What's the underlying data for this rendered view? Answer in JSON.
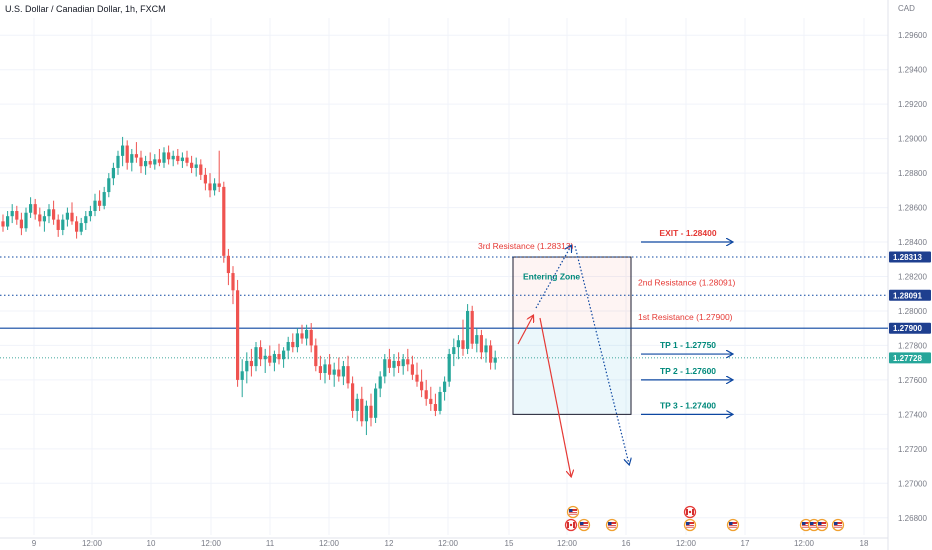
{
  "chart_data": {
    "type": "candlestick",
    "title": "U.S. Dollar / Canadian Dollar, 1h, FXCM",
    "currency": "CAD",
    "ylim": [
      1.267,
      1.297
    ],
    "y_ticks": [
      "1.29600",
      "1.29400",
      "1.29200",
      "1.29000",
      "1.28800",
      "1.28600",
      "1.28400",
      "1.28200",
      "1.28000",
      "1.27800",
      "1.27600",
      "1.27400",
      "1.27200",
      "1.27000",
      "1.26800"
    ],
    "x_ticks": [
      "9",
      "12:00",
      "10",
      "12:00",
      "11",
      "12:00",
      "12",
      "12:00",
      "15",
      "12:00",
      "16",
      "12:00",
      "17",
      "12:00",
      "18"
    ],
    "colors": {
      "up": "#26a69a",
      "down": "#ef5350",
      "blue": "#0d47a1",
      "teal": "#00897b",
      "red": "#e53935",
      "tag": "#1e3f8f"
    },
    "price_tags": [
      {
        "label": "1.28313",
        "value": 1.28313
      },
      {
        "label": "1.28091",
        "value": 1.28091
      },
      {
        "label": "1.27900",
        "value": 1.279
      },
      {
        "label": "1.27728",
        "value": 1.27728,
        "style": "current"
      }
    ],
    "levels": [
      {
        "label": "3rd Resistance (1.28313)",
        "value": 1.28313
      },
      {
        "label": "2nd Resistance (1.28091)",
        "value": 1.28091
      },
      {
        "label": "1st Resistance (1.27900)",
        "value": 1.279
      }
    ],
    "targets": [
      {
        "label": "EXIT - 1.28400",
        "value": 1.284,
        "color": "red"
      },
      {
        "label": "TP 1 - 1.27750",
        "value": 1.2775,
        "color": "teal"
      },
      {
        "label": "TP 2 - 1.27600",
        "value": 1.276,
        "color": "teal"
      },
      {
        "label": "TP 3 - 1.27400",
        "value": 1.274,
        "color": "teal"
      }
    ],
    "zone_label": "Entering Zone",
    "zone": {
      "top": 1.28313,
      "mid": 1.279,
      "bottom": 1.274
    },
    "ohlc": [
      [
        1.2852,
        1.2856,
        1.2846,
        1.2849
      ],
      [
        1.2849,
        1.2858,
        1.2847,
        1.2855
      ],
      [
        1.2855,
        1.2862,
        1.2851,
        1.2858
      ],
      [
        1.2858,
        1.2861,
        1.285,
        1.2853
      ],
      [
        1.2853,
        1.2857,
        1.2844,
        1.2848
      ],
      [
        1.2848,
        1.286,
        1.2846,
        1.2857
      ],
      [
        1.2857,
        1.2866,
        1.2854,
        1.2862
      ],
      [
        1.2862,
        1.2865,
        1.2853,
        1.2856
      ],
      [
        1.2856,
        1.286,
        1.2849,
        1.2852
      ],
      [
        1.2852,
        1.2858,
        1.2846,
        1.2855
      ],
      [
        1.2855,
        1.2862,
        1.2851,
        1.2859
      ],
      [
        1.2859,
        1.2864,
        1.285,
        1.2853
      ],
      [
        1.2853,
        1.2856,
        1.2843,
        1.2847
      ],
      [
        1.2847,
        1.2856,
        1.2844,
        1.2853
      ],
      [
        1.2853,
        1.286,
        1.2849,
        1.2857
      ],
      [
        1.2857,
        1.2863,
        1.285,
        1.2852
      ],
      [
        1.2852,
        1.2855,
        1.2842,
        1.2846
      ],
      [
        1.2846,
        1.2854,
        1.2844,
        1.2851
      ],
      [
        1.2851,
        1.2858,
        1.2847,
        1.2855
      ],
      [
        1.2855,
        1.2861,
        1.2852,
        1.2858
      ],
      [
        1.2858,
        1.2868,
        1.2855,
        1.2864
      ],
      [
        1.2864,
        1.287,
        1.2858,
        1.2861
      ],
      [
        1.2861,
        1.2872,
        1.2859,
        1.2869
      ],
      [
        1.2869,
        1.288,
        1.2866,
        1.2877
      ],
      [
        1.2877,
        1.2886,
        1.2873,
        1.2883
      ],
      [
        1.2883,
        1.2893,
        1.2879,
        1.289
      ],
      [
        1.289,
        1.2901,
        1.2884,
        1.2896
      ],
      [
        1.2896,
        1.2899,
        1.2882,
        1.2886
      ],
      [
        1.2886,
        1.2894,
        1.2881,
        1.2891
      ],
      [
        1.2891,
        1.2898,
        1.2886,
        1.2889
      ],
      [
        1.2889,
        1.2893,
        1.288,
        1.2884
      ],
      [
        1.2884,
        1.289,
        1.2879,
        1.2887
      ],
      [
        1.2887,
        1.2892,
        1.2883,
        1.2885
      ],
      [
        1.2885,
        1.2891,
        1.2882,
        1.2888
      ],
      [
        1.2888,
        1.2894,
        1.2884,
        1.2886
      ],
      [
        1.2886,
        1.2895,
        1.2883,
        1.2892
      ],
      [
        1.2892,
        1.2896,
        1.2885,
        1.2888
      ],
      [
        1.2888,
        1.2893,
        1.2884,
        1.289
      ],
      [
        1.289,
        1.2894,
        1.2885,
        1.2887
      ],
      [
        1.2887,
        1.2892,
        1.2883,
        1.2889
      ],
      [
        1.2889,
        1.2893,
        1.2884,
        1.2886
      ],
      [
        1.2886,
        1.289,
        1.288,
        1.2883
      ],
      [
        1.2883,
        1.2889,
        1.2878,
        1.2885
      ],
      [
        1.2885,
        1.2888,
        1.2876,
        1.2879
      ],
      [
        1.2879,
        1.2883,
        1.287,
        1.2874
      ],
      [
        1.2874,
        1.288,
        1.2866,
        1.287
      ],
      [
        1.287,
        1.2877,
        1.2867,
        1.2874
      ],
      [
        1.2874,
        1.2893,
        1.2869,
        1.2872
      ],
      [
        1.2872,
        1.2875,
        1.2828,
        1.2832
      ],
      [
        1.2832,
        1.2836,
        1.2815,
        1.2822
      ],
      [
        1.2822,
        1.2826,
        1.2804,
        1.2812
      ],
      [
        1.2812,
        1.2818,
        1.2756,
        1.276
      ],
      [
        1.276,
        1.2772,
        1.275,
        1.2765
      ],
      [
        1.2765,
        1.2776,
        1.2758,
        1.2771
      ],
      [
        1.2771,
        1.2778,
        1.2762,
        1.2768
      ],
      [
        1.2768,
        1.2782,
        1.2765,
        1.2779
      ],
      [
        1.2779,
        1.2783,
        1.2768,
        1.2772
      ],
      [
        1.2772,
        1.2778,
        1.2764,
        1.2774
      ],
      [
        1.2774,
        1.278,
        1.2768,
        1.277
      ],
      [
        1.277,
        1.2777,
        1.2765,
        1.2775
      ],
      [
        1.2775,
        1.2781,
        1.2769,
        1.2772
      ],
      [
        1.2772,
        1.2779,
        1.2767,
        1.2777
      ],
      [
        1.2777,
        1.2785,
        1.2772,
        1.2782
      ],
      [
        1.2782,
        1.2787,
        1.2776,
        1.2779
      ],
      [
        1.2779,
        1.279,
        1.2776,
        1.2787
      ],
      [
        1.2787,
        1.2792,
        1.2781,
        1.2784
      ],
      [
        1.2784,
        1.2792,
        1.278,
        1.2789
      ],
      [
        1.2789,
        1.2793,
        1.2776,
        1.278
      ],
      [
        1.278,
        1.2784,
        1.2765,
        1.2768
      ],
      [
        1.2768,
        1.2774,
        1.276,
        1.2764
      ],
      [
        1.2764,
        1.2772,
        1.2758,
        1.2769
      ],
      [
        1.2769,
        1.2775,
        1.276,
        1.2763
      ],
      [
        1.2763,
        1.277,
        1.2756,
        1.2766
      ],
      [
        1.2766,
        1.2773,
        1.2759,
        1.2762
      ],
      [
        1.2762,
        1.2771,
        1.2757,
        1.2768
      ],
      [
        1.2768,
        1.2774,
        1.2755,
        1.2758
      ],
      [
        1.2758,
        1.2762,
        1.2738,
        1.2742
      ],
      [
        1.2742,
        1.2752,
        1.2736,
        1.2749
      ],
      [
        1.2749,
        1.2756,
        1.2733,
        1.2736
      ],
      [
        1.2736,
        1.2748,
        1.2728,
        1.2745
      ],
      [
        1.2745,
        1.2752,
        1.2733,
        1.2738
      ],
      [
        1.2738,
        1.2758,
        1.2735,
        1.2755
      ],
      [
        1.2755,
        1.2765,
        1.275,
        1.2762
      ],
      [
        1.2762,
        1.2775,
        1.2758,
        1.2772
      ],
      [
        1.2772,
        1.2778,
        1.2764,
        1.2767
      ],
      [
        1.2767,
        1.2775,
        1.2762,
        1.2771
      ],
      [
        1.2771,
        1.2776,
        1.2764,
        1.2768
      ],
      [
        1.2768,
        1.2775,
        1.2763,
        1.2772
      ],
      [
        1.2772,
        1.2778,
        1.2765,
        1.2769
      ],
      [
        1.2769,
        1.2774,
        1.276,
        1.2763
      ],
      [
        1.2763,
        1.277,
        1.2756,
        1.2759
      ],
      [
        1.2759,
        1.2766,
        1.275,
        1.2754
      ],
      [
        1.2754,
        1.276,
        1.2745,
        1.2749
      ],
      [
        1.2749,
        1.2756,
        1.2742,
        1.2746
      ],
      [
        1.2746,
        1.2752,
        1.2739,
        1.2742
      ],
      [
        1.2742,
        1.2756,
        1.274,
        1.2753
      ],
      [
        1.2753,
        1.2762,
        1.2748,
        1.2759
      ],
      [
        1.2759,
        1.2778,
        1.2756,
        1.2775
      ],
      [
        1.2775,
        1.2784,
        1.2768,
        1.2779
      ],
      [
        1.2779,
        1.2786,
        1.2772,
        1.2783
      ],
      [
        1.2783,
        1.2795,
        1.2774,
        1.2778
      ],
      [
        1.2778,
        1.2804,
        1.2775,
        1.28
      ],
      [
        1.28,
        1.2803,
        1.2778,
        1.2781
      ],
      [
        1.2781,
        1.279,
        1.2776,
        1.2786
      ],
      [
        1.2786,
        1.2789,
        1.2772,
        1.2776
      ],
      [
        1.2776,
        1.2784,
        1.277,
        1.278
      ],
      [
        1.278,
        1.2783,
        1.2766,
        1.277
      ],
      [
        1.277,
        1.2777,
        1.2766,
        1.2773
      ]
    ]
  }
}
